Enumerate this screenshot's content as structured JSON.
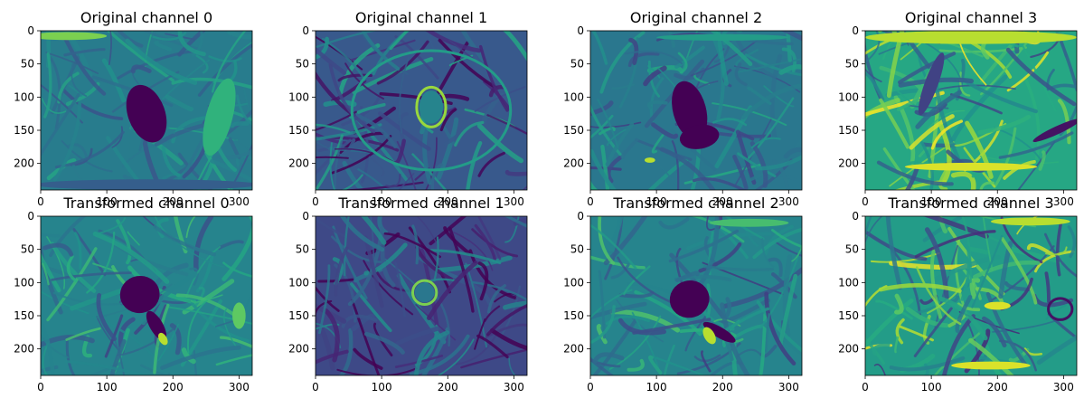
{
  "figure": {
    "colormap": "viridis",
    "palette": [
      "#440154",
      "#3b528b",
      "#21918c",
      "#5ec962",
      "#fde725"
    ]
  },
  "chart_data": [
    {
      "type": "heatmap",
      "title": "Original channel 0",
      "xlim": [
        0,
        320
      ],
      "ylim": [
        240,
        0
      ],
      "x_ticks": [
        "0",
        "100",
        "200",
        "300"
      ],
      "y_ticks": [
        "0",
        "50",
        "100",
        "150",
        "200"
      ],
      "base_level": 0.42,
      "base_noise": 0.1,
      "features": [
        {
          "kind": "blob",
          "cx": 160,
          "cy": 125,
          "rx": 28,
          "ry": 45,
          "level": 0.0,
          "rot": -20
        },
        {
          "kind": "band",
          "cx": 40,
          "cy": 8,
          "rx": 60,
          "ry": 6,
          "level": 0.8,
          "rot": 0
        },
        {
          "kind": "band",
          "cx": 270,
          "cy": 130,
          "rx": 20,
          "ry": 60,
          "level": 0.65,
          "rot": 15
        },
        {
          "kind": "band",
          "cx": 160,
          "cy": 232,
          "rx": 170,
          "ry": 8,
          "level": 0.3,
          "rot": 0
        }
      ]
    },
    {
      "type": "heatmap",
      "title": "Original channel 1",
      "xlim": [
        0,
        320
      ],
      "ylim": [
        240,
        0
      ],
      "x_ticks": [
        "0",
        "100",
        "200",
        "300"
      ],
      "y_ticks": [
        "0",
        "50",
        "100",
        "150",
        "200"
      ],
      "base_level": 0.28,
      "base_noise": 0.18,
      "features": [
        {
          "kind": "ring",
          "cx": 175,
          "cy": 115,
          "rx": 22,
          "ry": 30,
          "level": 0.85,
          "rot": 0
        },
        {
          "kind": "blob",
          "cx": 175,
          "cy": 115,
          "rx": 18,
          "ry": 25,
          "level": 0.45,
          "rot": 0
        },
        {
          "kind": "ring",
          "cx": 175,
          "cy": 120,
          "rx": 120,
          "ry": 90,
          "level": 0.55,
          "rot": 0
        }
      ]
    },
    {
      "type": "heatmap",
      "title": "Original channel 2",
      "xlim": [
        0,
        320
      ],
      "ylim": [
        240,
        0
      ],
      "x_ticks": [
        "0",
        "100",
        "200",
        "300"
      ],
      "y_ticks": [
        "0",
        "50",
        "100",
        "150",
        "200"
      ],
      "base_level": 0.4,
      "base_noise": 0.12,
      "features": [
        {
          "kind": "blob",
          "cx": 150,
          "cy": 120,
          "rx": 25,
          "ry": 45,
          "level": 0.0,
          "rot": -15
        },
        {
          "kind": "blob",
          "cx": 165,
          "cy": 160,
          "rx": 30,
          "ry": 18,
          "level": 0.0,
          "rot": -10
        },
        {
          "kind": "band",
          "cx": 90,
          "cy": 195,
          "rx": 8,
          "ry": 4,
          "level": 0.9,
          "rot": 0
        },
        {
          "kind": "band",
          "cx": 200,
          "cy": 10,
          "rx": 100,
          "ry": 5,
          "level": 0.55,
          "rot": 0
        }
      ]
    },
    {
      "type": "heatmap",
      "title": "Original channel 3",
      "xlim": [
        0,
        320
      ],
      "ylim": [
        240,
        0
      ],
      "x_ticks": [
        "0",
        "100",
        "200",
        "300"
      ],
      "y_ticks": [
        "0",
        "50",
        "100",
        "150",
        "200"
      ],
      "base_level": 0.6,
      "base_noise": 0.22,
      "features": [
        {
          "kind": "band",
          "cx": 160,
          "cy": 10,
          "rx": 160,
          "ry": 10,
          "level": 0.9,
          "rot": 0
        },
        {
          "kind": "band",
          "cx": 160,
          "cy": 205,
          "rx": 100,
          "ry": 6,
          "level": 0.95,
          "rot": 0
        },
        {
          "kind": "band",
          "cx": 290,
          "cy": 150,
          "rx": 40,
          "ry": 6,
          "level": 0.05,
          "rot": -25
        },
        {
          "kind": "band",
          "cx": 100,
          "cy": 80,
          "rx": 10,
          "ry": 50,
          "level": 0.2,
          "rot": 20
        }
      ]
    },
    {
      "type": "heatmap",
      "title": "Transformed channel 0",
      "xlim": [
        0,
        320
      ],
      "ylim": [
        240,
        0
      ],
      "x_ticks": [
        "0",
        "100",
        "200",
        "300"
      ],
      "y_ticks": [
        "0",
        "50",
        "100",
        "150",
        "200"
      ],
      "base_level": 0.45,
      "base_noise": 0.14,
      "features": [
        {
          "kind": "blob",
          "cx": 150,
          "cy": 118,
          "rx": 30,
          "ry": 28,
          "level": 0.0,
          "rot": -10
        },
        {
          "kind": "blob",
          "cx": 175,
          "cy": 165,
          "rx": 10,
          "ry": 25,
          "level": 0.0,
          "rot": -30
        },
        {
          "kind": "band",
          "cx": 185,
          "cy": 185,
          "rx": 6,
          "ry": 10,
          "level": 0.9,
          "rot": -30
        },
        {
          "kind": "band",
          "cx": 300,
          "cy": 150,
          "rx": 10,
          "ry": 20,
          "level": 0.75,
          "rot": 0
        }
      ]
    },
    {
      "type": "heatmap",
      "title": "Transformed channel 1",
      "xlim": [
        0,
        320
      ],
      "ylim": [
        240,
        0
      ],
      "x_ticks": [
        "0",
        "100",
        "200",
        "300"
      ],
      "y_ticks": [
        "0",
        "50",
        "100",
        "150",
        "200"
      ],
      "base_level": 0.22,
      "base_noise": 0.16,
      "features": [
        {
          "kind": "ring",
          "cx": 165,
          "cy": 115,
          "rx": 18,
          "ry": 18,
          "level": 0.8,
          "rot": 0
        },
        {
          "kind": "blob",
          "cx": 165,
          "cy": 115,
          "rx": 15,
          "ry": 15,
          "level": 0.4,
          "rot": 0
        }
      ]
    },
    {
      "type": "heatmap",
      "title": "Transformed channel 2",
      "xlim": [
        0,
        320
      ],
      "ylim": [
        240,
        0
      ],
      "x_ticks": [
        "0",
        "100",
        "200",
        "300"
      ],
      "y_ticks": [
        "0",
        "50",
        "100",
        "150",
        "200"
      ],
      "base_level": 0.45,
      "base_noise": 0.15,
      "features": [
        {
          "kind": "blob",
          "cx": 150,
          "cy": 125,
          "rx": 30,
          "ry": 28,
          "level": 0.0,
          "rot": -15
        },
        {
          "kind": "blob",
          "cx": 195,
          "cy": 175,
          "rx": 28,
          "ry": 8,
          "level": 0.0,
          "rot": 30
        },
        {
          "kind": "band",
          "cx": 180,
          "cy": 180,
          "rx": 8,
          "ry": 14,
          "level": 0.9,
          "rot": -30
        },
        {
          "kind": "band",
          "cx": 240,
          "cy": 10,
          "rx": 60,
          "ry": 6,
          "level": 0.7,
          "rot": 0
        }
      ]
    },
    {
      "type": "heatmap",
      "title": "Transformed channel 3",
      "xlim": [
        0,
        320
      ],
      "ylim": [
        240,
        0
      ],
      "x_ticks": [
        "0",
        "100",
        "200",
        "300"
      ],
      "y_ticks": [
        "0",
        "50",
        "100",
        "150",
        "200"
      ],
      "base_level": 0.55,
      "base_noise": 0.25,
      "features": [
        {
          "kind": "ring",
          "cx": 295,
          "cy": 140,
          "rx": 18,
          "ry": 16,
          "level": 0.05,
          "rot": 0
        },
        {
          "kind": "band",
          "cx": 190,
          "cy": 225,
          "rx": 60,
          "ry": 6,
          "level": 0.95,
          "rot": 0
        },
        {
          "kind": "band",
          "cx": 200,
          "cy": 135,
          "rx": 20,
          "ry": 6,
          "level": 0.95,
          "rot": 0
        },
        {
          "kind": "band",
          "cx": 250,
          "cy": 8,
          "rx": 60,
          "ry": 6,
          "level": 0.9,
          "rot": 0
        }
      ]
    }
  ]
}
